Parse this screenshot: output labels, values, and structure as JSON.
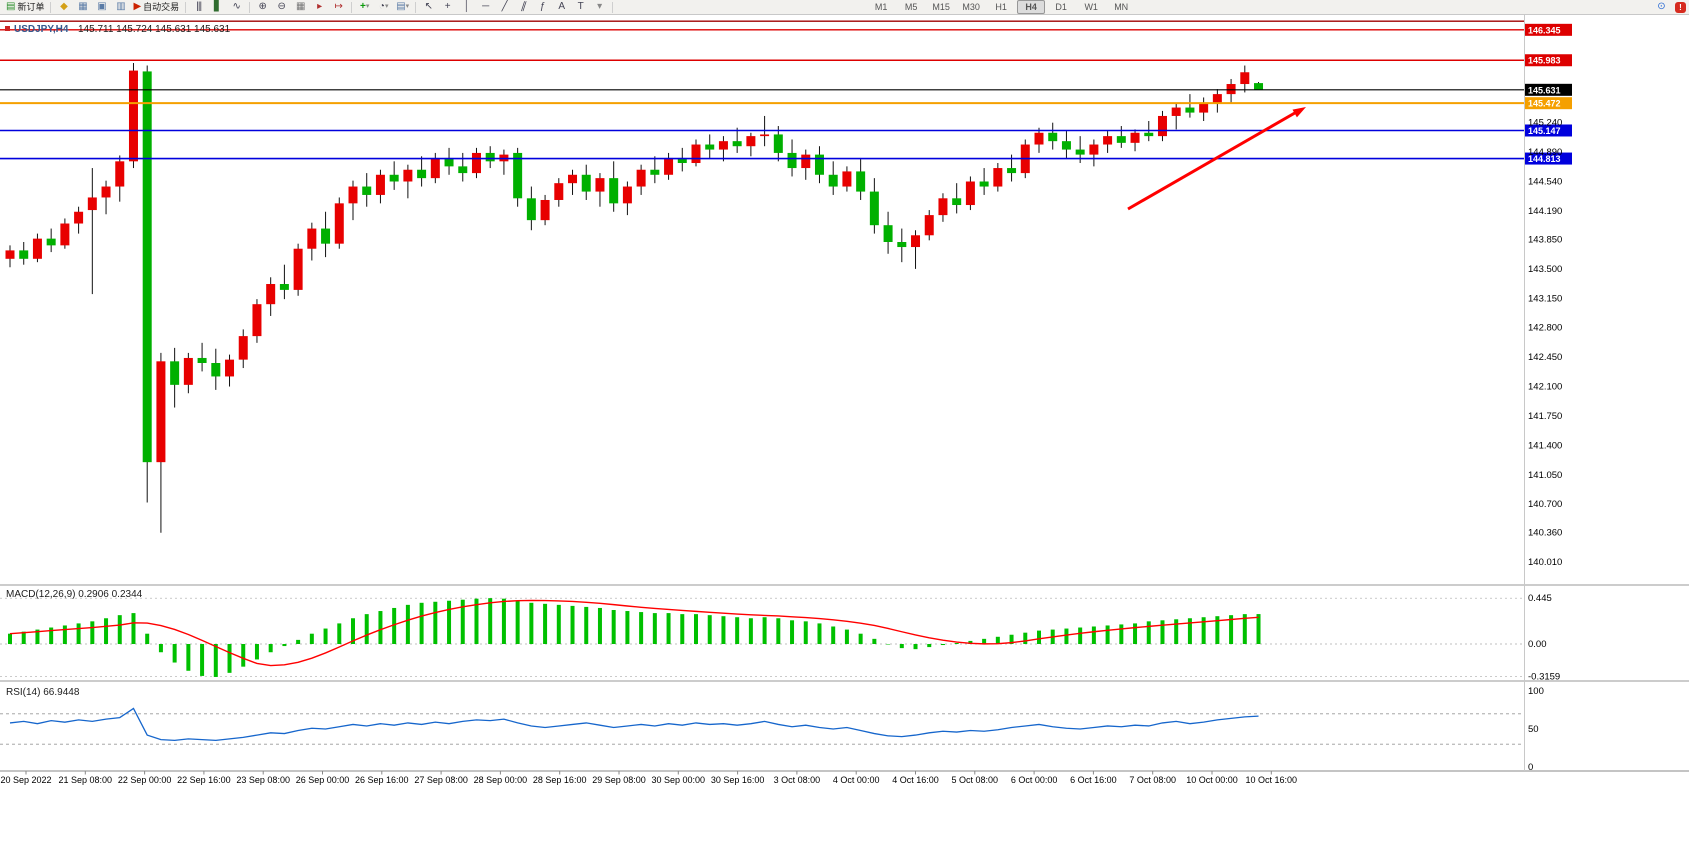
{
  "toolbar": {
    "new_order_label": "新订单",
    "autotrading_label": "自动交易",
    "timeframes": [
      "M1",
      "M5",
      "M15",
      "M30",
      "H1",
      "H4",
      "D1",
      "W1",
      "MN"
    ],
    "active_timeframe": "H4"
  },
  "icons": {
    "new_order": "▤",
    "market_watch": "◆",
    "data_window": "▦",
    "navigator": "▣",
    "terminal": "▥",
    "autotrading": "▶",
    "bar_chart": "|||",
    "candle_chart": "▋",
    "line_chart": "∿",
    "zoom_in": "⊕",
    "zoom_out": "⊖",
    "tile_windows": "▦",
    "auto_scroll": "▸",
    "chart_shift": "↦",
    "indicators": "+",
    "periods": "◔",
    "templates": "▤",
    "dropdown": "▾",
    "cursor": "↖",
    "crosshair": "+",
    "vline": "│",
    "hline": "─",
    "trendline": "╱",
    "channel": "∥",
    "fibonacci": "ƒ",
    "text": "A",
    "label": "T",
    "search": "⊙",
    "alert": "!"
  },
  "chart": {
    "symbol_title": "USDJPY,H4",
    "ohlc_title": "145.711 145.724 145.631 145.631",
    "current_price": "145.631",
    "axis_ticks": [
      "145.240",
      "144.890",
      "144.540",
      "144.190",
      "143.850",
      "143.500",
      "143.150",
      "142.800",
      "142.450",
      "142.100",
      "141.750",
      "141.400",
      "141.050",
      "140.700",
      "140.360",
      "140.010"
    ],
    "lines": [
      {
        "price": 146.448,
        "color": "#A00000",
        "width": 1.4,
        "label": ""
      },
      {
        "price": 146.345,
        "color": "#DD0000",
        "width": 1.4,
        "label": "146.345"
      },
      {
        "price": 145.983,
        "color": "#DD0000",
        "width": 1.4,
        "label": "145.983"
      },
      {
        "price": 145.631,
        "color": "#000000",
        "width": 1.2,
        "label": "145.631"
      },
      {
        "price": 145.472,
        "color": "#F5A000",
        "width": 2,
        "label": "145.472"
      },
      {
        "price": 145.147,
        "color": "#0000DD",
        "width": 1.6,
        "label": "145.147"
      },
      {
        "price": 144.813,
        "color": "#0000DD",
        "width": 1.6,
        "label": "144.813"
      }
    ]
  },
  "colors": {
    "candle_up": "#E80000",
    "candle_down": "#00B000",
    "wick": "#111111",
    "macd_hist": "#00C000",
    "macd_signal": "#FF0000",
    "rsi_line": "#1666CC",
    "arrow": "#FF0000"
  },
  "chart_data": {
    "type": "candlestick",
    "symbol": "USDJPY",
    "timeframe": "H4",
    "ylim": [
      139.74,
      146.45
    ],
    "x_labels": [
      "20 Sep 2022",
      "21 Sep 08:00",
      "22 Sep 00:00",
      "22 Sep 16:00",
      "23 Sep 08:00",
      "26 Sep 00:00",
      "26 Sep 16:00",
      "27 Sep 08:00",
      "28 Sep 00:00",
      "28 Sep 16:00",
      "29 Sep 08:00",
      "30 Sep 00:00",
      "30 Sep 16:00",
      "3 Oct 08:00",
      "4 Oct 00:00",
      "4 Oct 16:00",
      "5 Oct 08:00",
      "6 Oct 00:00",
      "6 Oct 16:00",
      "7 Oct 08:00",
      "10 Oct 00:00",
      "10 Oct 16:00"
    ],
    "ohlc": [
      [
        143.62,
        143.78,
        143.52,
        143.72
      ],
      [
        143.72,
        143.82,
        143.55,
        143.62
      ],
      [
        143.62,
        143.92,
        143.58,
        143.86
      ],
      [
        143.86,
        143.98,
        143.7,
        143.78
      ],
      [
        143.78,
        144.1,
        143.74,
        144.04
      ],
      [
        144.04,
        144.24,
        143.92,
        144.18
      ],
      [
        144.2,
        144.7,
        143.2,
        144.35
      ],
      [
        144.35,
        144.55,
        144.15,
        144.48
      ],
      [
        144.48,
        144.85,
        144.3,
        144.78
      ],
      [
        144.78,
        145.95,
        144.7,
        145.86
      ],
      [
        145.85,
        145.92,
        140.72,
        141.2
      ],
      [
        141.2,
        142.5,
        140.36,
        142.4
      ],
      [
        142.4,
        142.56,
        141.85,
        142.12
      ],
      [
        142.12,
        142.5,
        142.02,
        142.44
      ],
      [
        142.44,
        142.62,
        142.28,
        142.38
      ],
      [
        142.38,
        142.55,
        142.06,
        142.22
      ],
      [
        142.22,
        142.48,
        142.1,
        142.42
      ],
      [
        142.42,
        142.78,
        142.32,
        142.7
      ],
      [
        142.7,
        143.14,
        142.62,
        143.08
      ],
      [
        143.08,
        143.4,
        142.94,
        143.32
      ],
      [
        143.32,
        143.55,
        143.14,
        143.25
      ],
      [
        143.25,
        143.8,
        143.18,
        143.74
      ],
      [
        143.74,
        144.05,
        143.6,
        143.98
      ],
      [
        143.98,
        144.18,
        143.64,
        143.8
      ],
      [
        143.8,
        144.35,
        143.74,
        144.28
      ],
      [
        144.28,
        144.55,
        144.08,
        144.48
      ],
      [
        144.48,
        144.64,
        144.24,
        144.38
      ],
      [
        144.38,
        144.68,
        144.28,
        144.62
      ],
      [
        144.62,
        144.78,
        144.44,
        144.54
      ],
      [
        144.54,
        144.74,
        144.34,
        144.68
      ],
      [
        144.68,
        144.84,
        144.48,
        144.58
      ],
      [
        144.58,
        144.88,
        144.52,
        144.82
      ],
      [
        144.82,
        144.94,
        144.62,
        144.72
      ],
      [
        144.72,
        144.88,
        144.54,
        144.64
      ],
      [
        144.64,
        144.94,
        144.58,
        144.88
      ],
      [
        144.88,
        144.96,
        144.7,
        144.78
      ],
      [
        144.78,
        144.92,
        144.62,
        144.86
      ],
      [
        144.88,
        144.94,
        144.24,
        144.34
      ],
      [
        144.34,
        144.48,
        143.96,
        144.08
      ],
      [
        144.08,
        144.38,
        144.02,
        144.32
      ],
      [
        144.32,
        144.58,
        144.24,
        144.52
      ],
      [
        144.52,
        144.68,
        144.38,
        144.62
      ],
      [
        144.62,
        144.74,
        144.32,
        144.42
      ],
      [
        144.42,
        144.64,
        144.24,
        144.58
      ],
      [
        144.58,
        144.78,
        144.18,
        144.28
      ],
      [
        144.28,
        144.54,
        144.14,
        144.48
      ],
      [
        144.48,
        144.74,
        144.38,
        144.68
      ],
      [
        144.68,
        144.84,
        144.52,
        144.62
      ],
      [
        144.62,
        144.88,
        144.56,
        144.82
      ],
      [
        144.82,
        144.94,
        144.66,
        144.76
      ],
      [
        144.76,
        145.04,
        144.72,
        144.98
      ],
      [
        144.98,
        145.1,
        144.82,
        144.92
      ],
      [
        144.92,
        145.08,
        144.78,
        145.02
      ],
      [
        145.02,
        145.18,
        144.88,
        144.96
      ],
      [
        144.96,
        145.12,
        144.84,
        145.08
      ],
      [
        145.08,
        145.32,
        144.96,
        145.1
      ],
      [
        145.1,
        145.2,
        144.78,
        144.88
      ],
      [
        144.88,
        145.04,
        144.6,
        144.7
      ],
      [
        144.7,
        144.92,
        144.56,
        144.86
      ],
      [
        144.86,
        144.96,
        144.52,
        144.62
      ],
      [
        144.62,
        144.78,
        144.38,
        144.48
      ],
      [
        144.48,
        144.72,
        144.42,
        144.66
      ],
      [
        144.66,
        144.82,
        144.32,
        144.42
      ],
      [
        144.42,
        144.58,
        143.92,
        144.02
      ],
      [
        144.02,
        144.18,
        143.68,
        143.82
      ],
      [
        143.82,
        143.98,
        143.58,
        143.76
      ],
      [
        143.76,
        143.96,
        143.5,
        143.9
      ],
      [
        143.9,
        144.2,
        143.84,
        144.14
      ],
      [
        144.14,
        144.4,
        144.06,
        144.34
      ],
      [
        144.34,
        144.52,
        144.16,
        144.26
      ],
      [
        144.26,
        144.6,
        144.2,
        144.54
      ],
      [
        144.54,
        144.7,
        144.38,
        144.48
      ],
      [
        144.48,
        144.76,
        144.42,
        144.7
      ],
      [
        144.7,
        144.86,
        144.54,
        144.64
      ],
      [
        144.64,
        145.04,
        144.58,
        144.98
      ],
      [
        144.98,
        145.18,
        144.88,
        145.12
      ],
      [
        145.12,
        145.24,
        144.92,
        145.02
      ],
      [
        145.02,
        145.14,
        144.82,
        144.92
      ],
      [
        144.92,
        145.08,
        144.76,
        144.86
      ],
      [
        144.86,
        145.04,
        144.72,
        144.98
      ],
      [
        144.98,
        145.14,
        144.88,
        145.08
      ],
      [
        145.08,
        145.2,
        144.94,
        145.0
      ],
      [
        145.0,
        145.16,
        144.9,
        145.12
      ],
      [
        145.12,
        145.26,
        145.02,
        145.08
      ],
      [
        145.08,
        145.38,
        145.02,
        145.32
      ],
      [
        145.32,
        145.48,
        145.16,
        145.42
      ],
      [
        145.42,
        145.58,
        145.3,
        145.36
      ],
      [
        145.36,
        145.54,
        145.26,
        145.48
      ],
      [
        145.48,
        145.64,
        145.36,
        145.58
      ],
      [
        145.58,
        145.76,
        145.48,
        145.7
      ],
      [
        145.7,
        145.92,
        145.6,
        145.84
      ],
      [
        145.711,
        145.724,
        145.631,
        145.631
      ]
    ],
    "indicators": [
      {
        "name": "MACD",
        "label": "MACD(12,26,9) 0.2906 0.2344",
        "type": "histogram_with_signal",
        "value_main": "0.2906",
        "value_signal": "0.2344",
        "axis_labels": [
          "0.445",
          "0.00",
          "-0.3159"
        ],
        "histogram": [
          0.1,
          0.12,
          0.14,
          0.16,
          0.18,
          0.2,
          0.22,
          0.25,
          0.28,
          0.3,
          0.1,
          -0.08,
          -0.18,
          -0.26,
          -0.31,
          -0.32,
          -0.28,
          -0.22,
          -0.15,
          -0.08,
          -0.02,
          0.04,
          0.1,
          0.15,
          0.2,
          0.25,
          0.29,
          0.32,
          0.35,
          0.38,
          0.4,
          0.41,
          0.42,
          0.43,
          0.44,
          0.445,
          0.44,
          0.42,
          0.4,
          0.39,
          0.38,
          0.37,
          0.36,
          0.35,
          0.33,
          0.32,
          0.31,
          0.3,
          0.3,
          0.29,
          0.29,
          0.28,
          0.27,
          0.26,
          0.25,
          0.26,
          0.25,
          0.23,
          0.22,
          0.2,
          0.17,
          0.14,
          0.1,
          0.05,
          0.0,
          -0.04,
          -0.05,
          -0.03,
          -0.01,
          0.01,
          0.03,
          0.05,
          0.07,
          0.09,
          0.11,
          0.13,
          0.14,
          0.15,
          0.16,
          0.17,
          0.18,
          0.19,
          0.2,
          0.22,
          0.23,
          0.24,
          0.25,
          0.26,
          0.27,
          0.28,
          0.29,
          0.2906
        ]
      },
      {
        "name": "RSI",
        "label": "RSI(14) 66.9448",
        "type": "line",
        "value": "66.9448",
        "axis_labels": [
          "100",
          "50",
          "0"
        ],
        "levels": [
          70,
          30
        ],
        "values": [
          58,
          60,
          57,
          61,
          59,
          62,
          60,
          63,
          65,
          77,
          42,
          36,
          35,
          37,
          36,
          35,
          37,
          39,
          42,
          45,
          44,
          48,
          51,
          50,
          53,
          56,
          54,
          57,
          55,
          58,
          56,
          59,
          57,
          60,
          62,
          61,
          63,
          58,
          54,
          52,
          54,
          56,
          58,
          55,
          52,
          54,
          56,
          54,
          57,
          55,
          58,
          56,
          57,
          55,
          57,
          60,
          56,
          53,
          55,
          52,
          50,
          52,
          48,
          44,
          41,
          40,
          42,
          45,
          47,
          46,
          48,
          47,
          49,
          52,
          54,
          56,
          53,
          51,
          50,
          52,
          54,
          53,
          55,
          54,
          58,
          60,
          57,
          59,
          62,
          64,
          66,
          66.9
        ]
      }
    ]
  }
}
